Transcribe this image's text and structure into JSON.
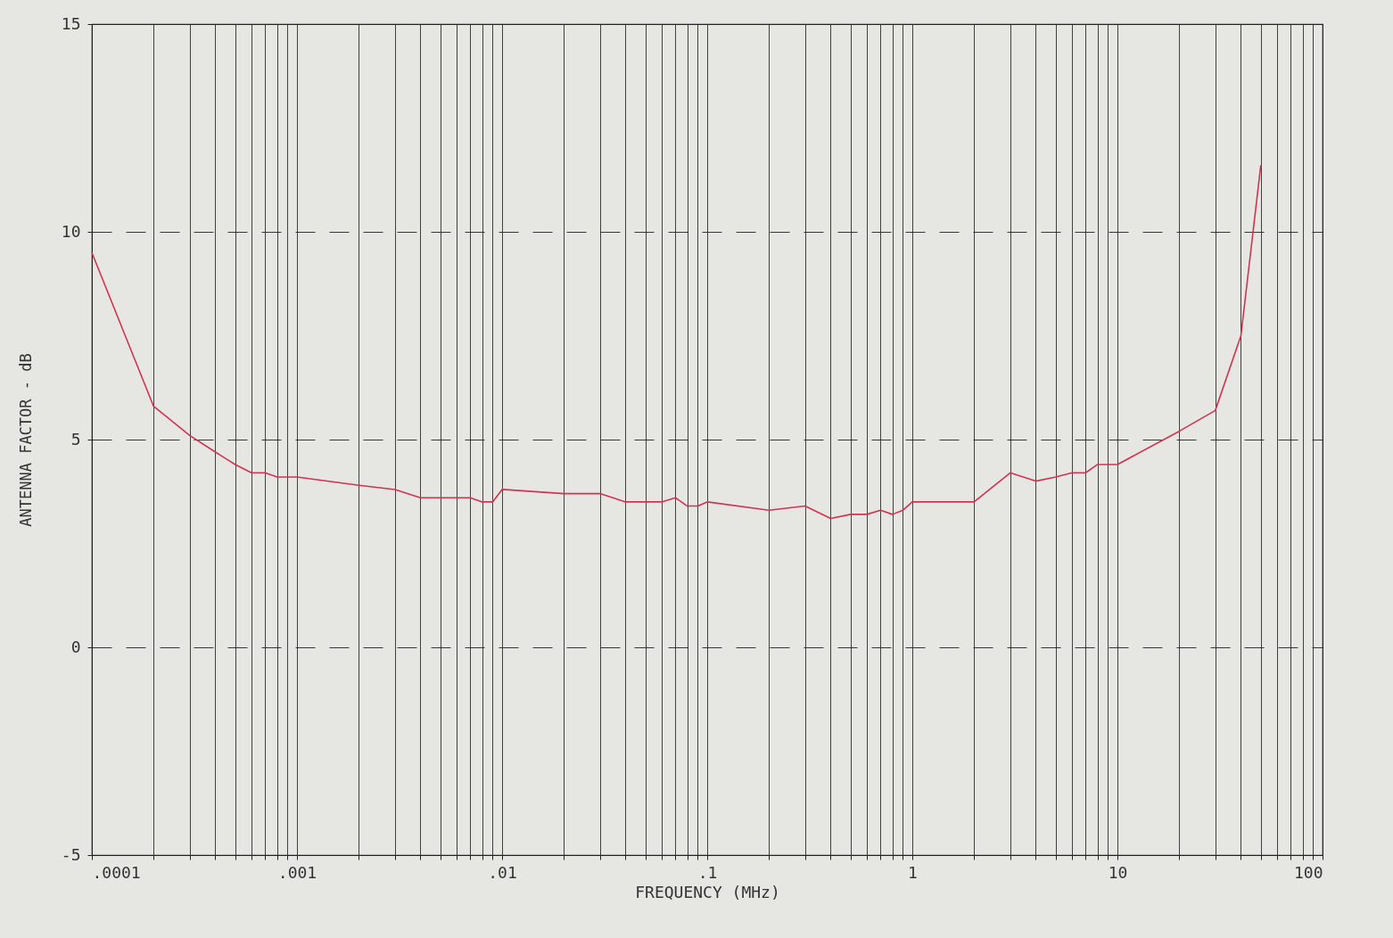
{
  "chart_data": {
    "type": "line",
    "xlabel": "FREQUENCY (MHz)",
    "ylabel": "ANTENNA FACTOR - dB",
    "log": "x",
    "grid": true,
    "xlim": [
      0.0001,
      100
    ],
    "ylim": [
      -5,
      15
    ],
    "yticks": [
      -5,
      0,
      5,
      10,
      15
    ],
    "xticks": [
      {
        "value": 0.0001,
        "label": ".0001"
      },
      {
        "value": 0.0002,
        "label": null
      },
      {
        "value": 0.0003,
        "label": null
      },
      {
        "value": 0.0004,
        "label": null
      },
      {
        "value": 0.0005,
        "label": null
      },
      {
        "value": 0.0006,
        "label": null
      },
      {
        "value": 0.0007,
        "label": null
      },
      {
        "value": 0.0008,
        "label": null
      },
      {
        "value": 0.0009,
        "label": null
      },
      {
        "value": 0.001,
        "label": ".001"
      },
      {
        "value": 0.002,
        "label": null
      },
      {
        "value": 0.003,
        "label": null
      },
      {
        "value": 0.004,
        "label": null
      },
      {
        "value": 0.005,
        "label": null
      },
      {
        "value": 0.006,
        "label": null
      },
      {
        "value": 0.007,
        "label": null
      },
      {
        "value": 0.008,
        "label": null
      },
      {
        "value": 0.009,
        "label": null
      },
      {
        "value": 0.01,
        "label": ".01"
      },
      {
        "value": 0.02,
        "label": null
      },
      {
        "value": 0.03,
        "label": null
      },
      {
        "value": 0.04,
        "label": null
      },
      {
        "value": 0.05,
        "label": null
      },
      {
        "value": 0.06,
        "label": null
      },
      {
        "value": 0.07,
        "label": null
      },
      {
        "value": 0.08,
        "label": null
      },
      {
        "value": 0.09,
        "label": null
      },
      {
        "value": 0.1,
        "label": ".1"
      },
      {
        "value": 0.2,
        "label": null
      },
      {
        "value": 0.3,
        "label": null
      },
      {
        "value": 0.4,
        "label": null
      },
      {
        "value": 0.5,
        "label": null
      },
      {
        "value": 0.6,
        "label": null
      },
      {
        "value": 0.7,
        "label": null
      },
      {
        "value": 0.8,
        "label": null
      },
      {
        "value": 0.9,
        "label": null
      },
      {
        "value": 1,
        "label": "1"
      },
      {
        "value": 2,
        "label": null
      },
      {
        "value": 3,
        "label": null
      },
      {
        "value": 4,
        "label": null
      },
      {
        "value": 5,
        "label": null
      },
      {
        "value": 6,
        "label": null
      },
      {
        "value": 7,
        "label": null
      },
      {
        "value": 8,
        "label": null
      },
      {
        "value": 9,
        "label": null
      },
      {
        "value": 10,
        "label": "10"
      },
      {
        "value": 20,
        "label": null
      },
      {
        "value": 30,
        "label": null
      },
      {
        "value": 40,
        "label": null
      },
      {
        "value": 50,
        "label": null
      },
      {
        "value": 60,
        "label": null
      },
      {
        "value": 70,
        "label": null
      },
      {
        "value": 80,
        "label": null
      },
      {
        "value": 90,
        "label": null
      },
      {
        "value": 100,
        "label": "100"
      }
    ],
    "x": [
      0.0001,
      0.0002,
      0.0003,
      0.0004,
      0.0005,
      0.0006,
      0.0007,
      0.0008,
      0.001,
      0.002,
      0.003,
      0.004,
      0.005,
      0.007,
      0.008,
      0.009,
      0.01,
      0.02,
      0.03,
      0.04,
      0.06,
      0.07,
      0.08,
      0.09,
      0.1,
      0.2,
      0.3,
      0.4,
      0.5,
      0.6,
      0.7,
      0.8,
      0.9,
      1,
      2,
      3,
      4,
      5,
      6,
      7,
      8,
      9,
      10,
      20,
      30,
      40,
      50
    ],
    "series": [
      {
        "color": "#d0344f",
        "values": [
          9.5,
          5.8,
          5.1,
          4.7,
          4.4,
          4.2,
          4.2,
          4.1,
          4.1,
          3.9,
          3.8,
          3.6,
          3.6,
          3.6,
          3.5,
          3.5,
          3.8,
          3.7,
          3.7,
          3.5,
          3.5,
          3.6,
          3.4,
          3.4,
          3.5,
          3.3,
          3.4,
          3.1,
          3.2,
          3.2,
          3.3,
          3.2,
          3.3,
          3.5,
          3.5,
          4.2,
          4.0,
          4.1,
          4.2,
          4.2,
          4.4,
          4.4,
          4.4,
          5.2,
          5.7,
          7.5,
          11.6
        ]
      }
    ]
  }
}
